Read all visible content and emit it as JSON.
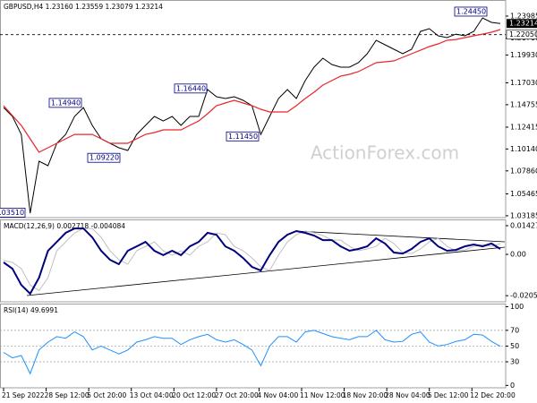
{
  "chart_data": [
    {
      "type": "line",
      "title": "GBPUSD,H4 1.23160 1.23559 1.23079 1.23214",
      "watermark": "ActionForex.com",
      "x": [
        0,
        1,
        2,
        3,
        4,
        5,
        6,
        7,
        8,
        9,
        10,
        11,
        12,
        13,
        14,
        15,
        16,
        17,
        18,
        19,
        20,
        21,
        22,
        23,
        24,
        25,
        26,
        27,
        28,
        29,
        30,
        31,
        32,
        33,
        34,
        35,
        36,
        37,
        38,
        39,
        40,
        41,
        42,
        43,
        44,
        45,
        46,
        47,
        48,
        49,
        50,
        51,
        52,
        53,
        54,
        55,
        56
      ],
      "xlim": [
        0,
        56
      ],
      "series": [
        {
          "color": "#000000",
          "values": [
            1.1446,
            1.1353,
            1.1166,
            1.0345,
            1.0887,
            1.084,
            1.1073,
            1.1166,
            1.1353,
            1.1446,
            1.126,
            1.112,
            1.1073,
            1.1027,
            1.0999,
            1.1166,
            1.126,
            1.1353,
            1.1306,
            1.1353,
            1.126,
            1.1353,
            1.1353,
            1.1633,
            1.1558,
            1.154,
            1.1558,
            1.1521,
            1.1465,
            1.1166,
            1.1353,
            1.154,
            1.1633,
            1.154,
            1.1726,
            1.1866,
            1.196,
            1.1894,
            1.1866,
            1.1866,
            1.1913,
            1.2006,
            1.2146,
            1.21,
            1.2053,
            1.2006,
            1.2053,
            1.2239,
            1.2267,
            1.2193,
            1.2174,
            1.2211,
            1.2193,
            1.2239,
            1.2379,
            1.2333,
            1.2321
          ]
        },
        {
          "color": "#e8262b",
          "values": [
            1.1465,
            1.1362,
            1.126,
            1.112,
            1.098,
            1.1027,
            1.1073,
            1.112,
            1.1166,
            1.1166,
            1.1166,
            1.112,
            1.1073,
            1.1073,
            1.1073,
            1.112,
            1.1166,
            1.1185,
            1.1213,
            1.1213,
            1.1213,
            1.126,
            1.1306,
            1.1381,
            1.1465,
            1.1493,
            1.1521,
            1.1493,
            1.1465,
            1.1428,
            1.14,
            1.14,
            1.14,
            1.1465,
            1.154,
            1.1605,
            1.168,
            1.1726,
            1.1773,
            1.1792,
            1.182,
            1.1866,
            1.1913,
            1.1922,
            1.1932,
            1.1969,
            1.2006,
            1.2043,
            1.2081,
            1.2109,
            1.2146,
            1.2155,
            1.2174,
            1.2193,
            1.2211,
            1.223,
            1.2258
          ]
        }
      ],
      "ylim": [
        1.0299,
        1.2566
      ],
      "yticks": [
        1.23985,
        {
          "value": 1.2171,
          "label": "1.21710"
        },
        {
          "value": 1.1993,
          "label": "1.19930"
        },
        {
          "value": 1.1703,
          "label": "1.17030"
        },
        1.14755,
        1.12415,
        {
          "value": 1.1014,
          "label": "1.10140"
        },
        {
          "value": 1.0786,
          "label": "1.07860"
        },
        1.05465,
        1.03185
      ],
      "annotations": [
        {
          "value": 1.2445,
          "label": "1.24450"
        },
        {
          "value": 1.1494,
          "label": "1.14940"
        },
        {
          "value": 1.1644,
          "label": "1.16440"
        },
        {
          "value": 1.0922,
          "label": "1.09220"
        },
        {
          "value": 1.1145,
          "label": "1.11450"
        },
        {
          "value": 1.0351,
          "label": "1.03510"
        }
      ],
      "hline": {
        "value": 1.2205,
        "label": "1.22050"
      },
      "last": {
        "value": 1.23214,
        "label": "1.23214"
      }
    },
    {
      "type": "line",
      "title": "MACD(12,26,9) 0.002718 -0.004084",
      "x": [
        0,
        1,
        2,
        3,
        4,
        5,
        6,
        7,
        8,
        9,
        10,
        11,
        12,
        13,
        14,
        15,
        16,
        17,
        18,
        19,
        20,
        21,
        22,
        23,
        24,
        25,
        26,
        27,
        28,
        29,
        30,
        31,
        32,
        33,
        34,
        35,
        36,
        37,
        38,
        39,
        40,
        41,
        42,
        43,
        44,
        45,
        46,
        47,
        48,
        49,
        50,
        51,
        52,
        53,
        54,
        55,
        56
      ],
      "xlim": [
        0,
        56
      ],
      "series": [
        {
          "color": "#c0c0c0",
          "values": [
            -0.003,
            -0.004,
            -0.0071,
            -0.0152,
            -0.018,
            -0.0116,
            0.0018,
            0.0062,
            0.0107,
            0.0129,
            0.0129,
            0.0085,
            0.0018,
            -0.0027,
            -0.0049,
            0.0018,
            0.004,
            0.0062,
            0.0018,
            -0.0004,
            0.0018,
            -0.0004,
            0.004,
            0.0062,
            0.0107,
            0.0098,
            0.004,
            0.0018,
            -0.0018,
            -0.0062,
            -0.008,
            -0.0004,
            0.0062,
            0.0098,
            0.0116,
            0.0107,
            0.0094,
            0.0071,
            0.0071,
            0.004,
            0.0018,
            0.0027,
            0.004,
            0.008,
            0.0054,
            0.0009,
            0.0004,
            0.0027,
            0.0062,
            0.008,
            0.004,
            0.0018,
            0.0022,
            0.004,
            0.0049,
            0.004,
            0.0054
          ]
        },
        {
          "color": "#000080",
          "values": [
            -0.004,
            -0.0071,
            -0.0152,
            -0.0196,
            -0.0116,
            0.0018,
            0.0062,
            0.0107,
            0.0129,
            0.0129,
            0.0085,
            0.0018,
            -0.0027,
            -0.0049,
            0.0018,
            0.004,
            0.0062,
            0.0018,
            -0.0004,
            0.0018,
            -0.0004,
            0.004,
            0.0062,
            0.0107,
            0.0098,
            0.004,
            0.0018,
            -0.0018,
            -0.0062,
            -0.008,
            -0.0004,
            0.0062,
            0.0098,
            0.0116,
            0.0107,
            0.0094,
            0.0071,
            0.0071,
            0.004,
            0.0018,
            0.0027,
            0.004,
            0.008,
            0.0054,
            0.0009,
            0.0004,
            0.0027,
            0.0062,
            0.008,
            0.004,
            0.0018,
            0.0022,
            0.004,
            0.0049,
            0.004,
            0.0054,
            0.0027
          ]
        }
      ],
      "ylim": [
        -0.0236,
        0.0174
      ],
      "yticks": [
        0.014278,
        {
          "value": 0,
          "label": "0.00"
        },
        -0.020556
      ]
    },
    {
      "type": "line",
      "title": "RSI(14) 49.6991",
      "x": [
        0,
        1,
        2,
        3,
        4,
        5,
        6,
        7,
        8,
        9,
        10,
        11,
        12,
        13,
        14,
        15,
        16,
        17,
        18,
        19,
        20,
        21,
        22,
        23,
        24,
        25,
        26,
        27,
        28,
        29,
        30,
        31,
        32,
        33,
        34,
        35,
        36,
        37,
        38,
        39,
        40,
        41,
        42,
        43,
        44,
        45,
        46,
        47,
        48,
        49,
        50,
        51,
        52,
        53,
        54,
        55,
        56
      ],
      "xlim": [
        0,
        56
      ],
      "series": [
        {
          "color": "#1e90ff",
          "values": [
            42,
            35,
            38,
            15,
            45,
            55,
            62,
            60,
            68,
            62,
            45,
            50,
            45,
            40,
            45,
            55,
            58,
            62,
            60,
            60,
            52,
            58,
            62,
            65,
            58,
            55,
            58,
            52,
            45,
            25,
            50,
            62,
            62,
            55,
            68,
            70,
            66,
            62,
            60,
            58,
            62,
            62,
            70,
            58,
            55,
            56,
            65,
            68,
            55,
            50,
            52,
            56,
            58,
            65,
            64,
            56,
            49.7
          ]
        }
      ],
      "ylim": [
        -3,
        104
      ],
      "yticks": [
        100,
        70,
        50,
        30,
        0
      ],
      "grid": true,
      "xticks": [
        {
          "value": 0,
          "label": "21 Sep 2022"
        },
        {
          "value": 4.8,
          "label": "28 Sep 12:00"
        },
        {
          "value": 9.6,
          "label": "5 Oct 20:00"
        },
        {
          "value": 14.4,
          "label": "13 Oct 04:00"
        },
        {
          "value": 19.2,
          "label": "20 Oct 12:00"
        },
        {
          "value": 24,
          "label": "27 Oct 20:00"
        },
        {
          "value": 28.8,
          "label": "4 Nov 04:00"
        },
        {
          "value": 33.6,
          "label": "11 Nov 12:00"
        },
        {
          "value": 38.4,
          "label": "18 Nov 20:00"
        },
        {
          "value": 43.2,
          "label": "28 Nov 04:00"
        },
        {
          "value": 48,
          "label": "5 Dec 12:00"
        },
        {
          "value": 52.8,
          "label": "12 Dec 20:00"
        }
      ]
    }
  ]
}
